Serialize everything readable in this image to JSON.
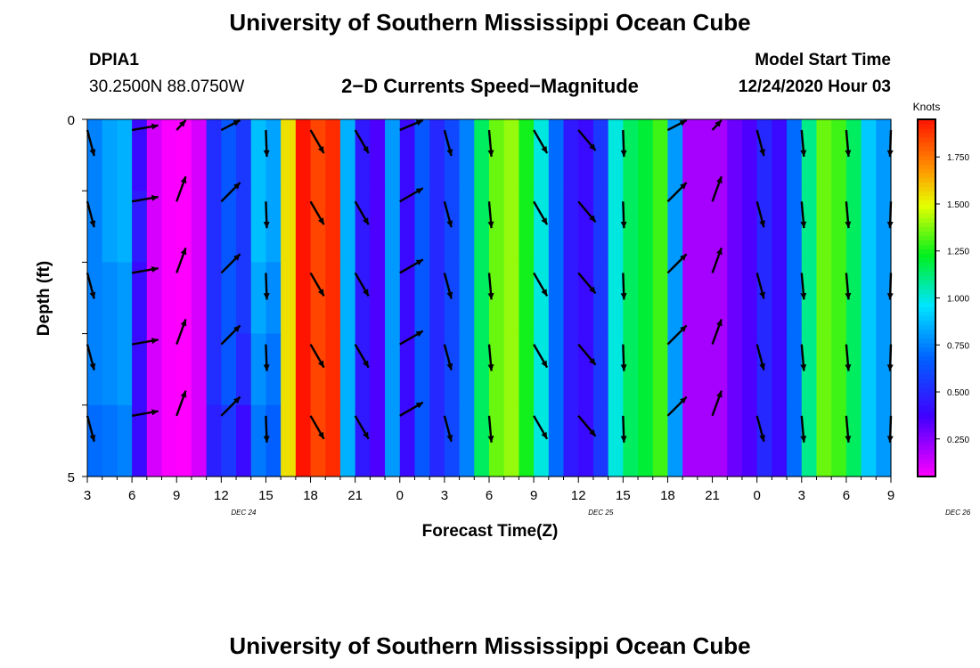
{
  "header": {
    "title": "University of Southern Mississippi Ocean Cube",
    "station": "DPIA1",
    "coords": "30.2500N 88.0750W",
    "start_label": "Model Start Time",
    "start_time": "12/24/2020 Hour 03"
  },
  "footer": {
    "title": "University of Southern Mississippi Ocean Cube"
  },
  "chart_data": {
    "type": "heatmap",
    "title": "2−D Currents Speed−Magnitude",
    "xlabel": "Forecast Time(Z)",
    "ylabel": "Depth (ft)",
    "ylim": [
      0,
      5
    ],
    "y_tick_labels": [
      {
        "depth": 0,
        "label": "0"
      },
      {
        "depth": 5,
        "label": "5"
      }
    ],
    "x_tick_labels": [
      "3",
      "6",
      "9",
      "12",
      "15",
      "18",
      "21",
      "0",
      "3",
      "6",
      "9",
      "12",
      "15",
      "18",
      "21",
      "0",
      "3",
      "6",
      "9"
    ],
    "x_tick_hours": [
      3,
      6,
      9,
      12,
      15,
      18,
      21,
      24,
      27,
      30,
      33,
      36,
      39,
      42,
      45,
      48,
      51,
      54,
      57
    ],
    "x_range_hours": [
      3,
      57
    ],
    "date_labels": [
      {
        "hour": 13.5,
        "label": "DEC  24"
      },
      {
        "hour": 37.5,
        "label": "DEC  25"
      },
      {
        "hour": 61.5,
        "label": "DEC  26"
      }
    ],
    "colorbar": {
      "unit": "Knots",
      "range": [
        0.05,
        1.95
      ],
      "ticks": [
        {
          "value": 0.25,
          "label": "0.250"
        },
        {
          "value": 0.5,
          "label": "0.500"
        },
        {
          "value": 0.75,
          "label": "0.750"
        },
        {
          "value": 1.0,
          "label": "1.000"
        },
        {
          "value": 1.25,
          "label": "1.250"
        },
        {
          "value": 1.5,
          "label": "1.500"
        },
        {
          "value": 1.75,
          "label": "1.750"
        }
      ]
    },
    "depth_levels": [
      0,
      1,
      2,
      3,
      4,
      5
    ],
    "hourly_speed_knots": [
      0.75,
      0.82,
      0.85,
      0.4,
      0.12,
      0.06,
      0.05,
      0.12,
      0.52,
      0.65,
      0.55,
      0.88,
      0.82,
      1.55,
      1.95,
      1.85,
      1.9,
      0.85,
      0.45,
      0.35,
      0.8,
      0.4,
      0.65,
      0.5,
      0.6,
      0.75,
      1.15,
      1.35,
      1.4,
      1.25,
      1.0,
      0.7,
      0.45,
      0.4,
      0.55,
      1.0,
      1.15,
      1.2,
      1.3,
      0.8,
      0.2,
      0.2,
      0.2,
      0.3,
      0.35,
      0.5,
      0.4,
      0.7,
      1.1,
      1.35,
      1.3,
      1.15,
      0.9,
      0.8,
      0.7
    ],
    "depth_offsets": [
      [
        0,
        0,
        0,
        0,
        0,
        0,
        0,
        0,
        0,
        0,
        0,
        0,
        0,
        0,
        0,
        0,
        0,
        0,
        0,
        0,
        0,
        0,
        0,
        0,
        0,
        0,
        0,
        0,
        0,
        0,
        0,
        0,
        0,
        0,
        0,
        0,
        0,
        0,
        0,
        0,
        0,
        0,
        0,
        0,
        0,
        0,
        0,
        0,
        0,
        0,
        0,
        0,
        0,
        0,
        0
      ],
      [
        0,
        0,
        0,
        0.05,
        0,
        0,
        0,
        0,
        0,
        0,
        0,
        0,
        0,
        0,
        0,
        0,
        0,
        0,
        0,
        0,
        0,
        0,
        0,
        0,
        0,
        0,
        0,
        0,
        0,
        0,
        0,
        0,
        0,
        0,
        0,
        0,
        0,
        0,
        0,
        0,
        0,
        0,
        0,
        0,
        0,
        0,
        0,
        0,
        0,
        0,
        0,
        0,
        0,
        0,
        0
      ],
      [
        0,
        -0.05,
        -0.05,
        0,
        0,
        0,
        0,
        0,
        0,
        0,
        0,
        -0.05,
        -0.05,
        0,
        0,
        0,
        0,
        0,
        0,
        0,
        0,
        0,
        0,
        0,
        0,
        0,
        0,
        0,
        0,
        0,
        0,
        0,
        0,
        0,
        0,
        0,
        0,
        0,
        0,
        0,
        0,
        0,
        0,
        0,
        0,
        0,
        0,
        0,
        0,
        0,
        0,
        0,
        0,
        0,
        0
      ],
      [
        0,
        -0.05,
        -0.05,
        0,
        0,
        0,
        0,
        0,
        0,
        0,
        -0.05,
        -0.1,
        -0.1,
        0,
        0,
        0,
        0,
        0,
        0,
        0,
        0,
        0,
        0,
        0,
        0,
        0,
        0,
        0,
        0,
        0,
        0,
        0,
        0,
        0,
        0,
        0,
        0,
        0,
        0,
        0,
        0,
        0,
        0,
        0,
        0,
        0,
        0,
        0,
        0,
        0,
        0,
        0,
        0,
        0,
        0
      ],
      [
        -0.05,
        -0.1,
        -0.1,
        0,
        0,
        0,
        0,
        0,
        -0.05,
        -0.1,
        -0.15,
        -0.15,
        -0.15,
        0,
        0,
        0,
        0,
        0,
        0,
        0,
        0,
        0,
        0,
        0,
        0,
        0,
        0,
        0,
        0,
        0,
        0,
        0,
        0,
        0,
        0,
        0,
        0,
        0,
        0,
        0,
        0,
        0,
        0,
        0,
        0,
        0,
        0,
        0,
        0,
        0,
        0,
        0,
        0,
        0,
        0
      ],
      [
        -0.05,
        -0.1,
        -0.1,
        0,
        0,
        0,
        0,
        0,
        -0.05,
        -0.1,
        -0.15,
        -0.15,
        -0.15,
        0,
        0,
        0,
        0,
        0,
        0,
        0,
        0,
        0,
        0,
        0,
        0,
        0,
        0,
        0,
        0,
        0,
        0,
        0,
        0,
        0,
        0,
        0,
        0,
        0,
        0,
        0,
        0,
        0,
        0,
        0,
        0,
        0,
        0,
        0,
        0,
        0,
        0,
        0,
        0,
        0,
        0
      ]
    ],
    "vector_hours": [
      3,
      6,
      9,
      12,
      15,
      18,
      21,
      24,
      27,
      30,
      33,
      36,
      39,
      42,
      45,
      48,
      51,
      54,
      57
    ],
    "vector_depths": [
      0.15,
      1.15,
      2.15,
      3.15,
      4.15
    ],
    "vector_directions_deg": [
      165,
      80,
      20,
      45,
      178,
      150,
      150,
      60,
      165,
      175,
      150,
      140,
      178,
      45,
      20,
      165,
      175,
      175,
      178
    ]
  }
}
